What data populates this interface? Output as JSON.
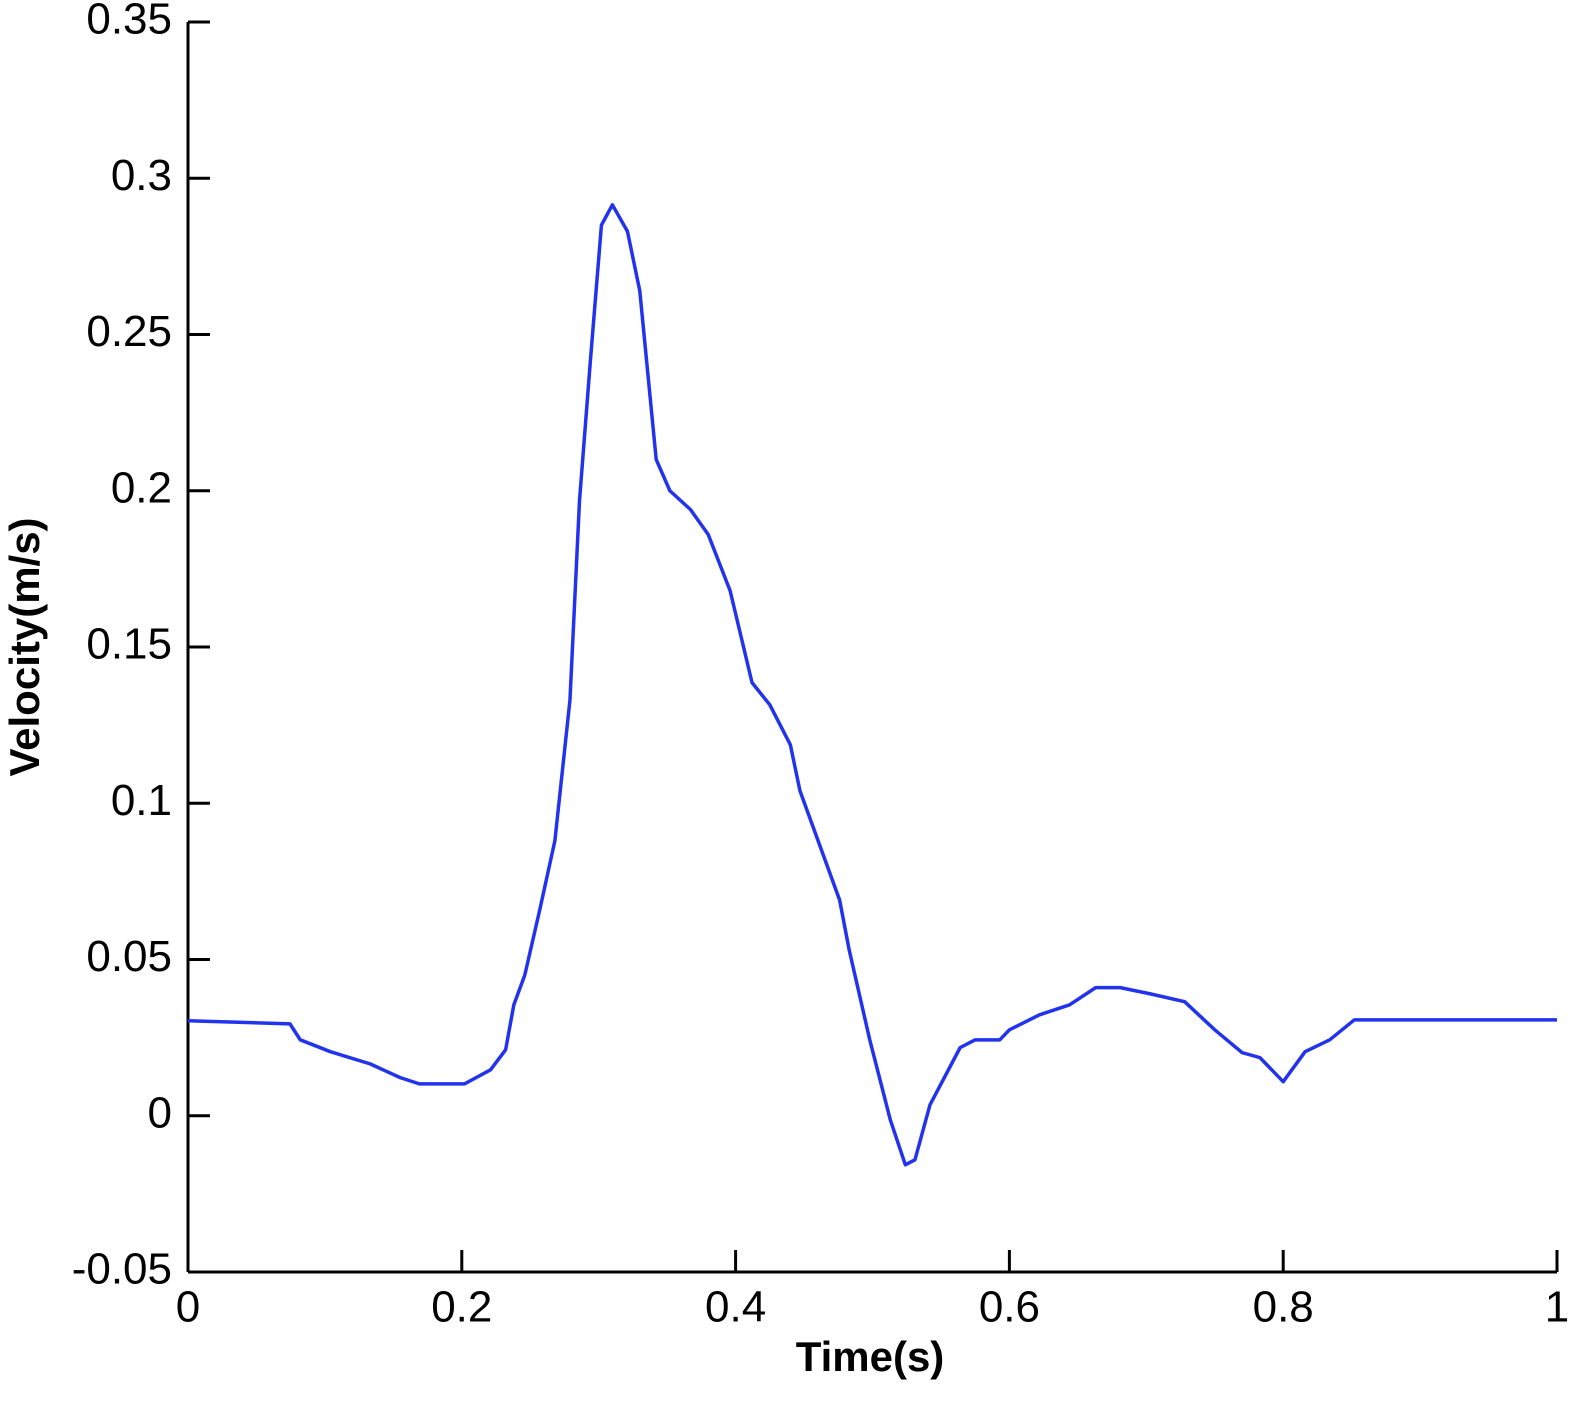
{
  "chart_data": {
    "type": "line",
    "x_label": "Time(s)",
    "y_label": "Velocity(m/s)",
    "xlim": [
      0,
      1
    ],
    "xticks": [
      0,
      0.2,
      0.4,
      0.6,
      0.8,
      1
    ],
    "ylim": [
      -0.05,
      0.35
    ],
    "yticks": [
      -0.05,
      0,
      0.05,
      0.1,
      0.15,
      0.2,
      0.25,
      0.3,
      0.35
    ],
    "x": [
      0,
      0.0745,
      0.082,
      0.104,
      0.133,
      0.155,
      0.169,
      0.202,
      0.221,
      0.232,
      0.238,
      0.246,
      0.257,
      0.268,
      0.279,
      0.286,
      0.294,
      0.302,
      0.31,
      0.321,
      0.33,
      0.342,
      0.352,
      0.367,
      0.38,
      0.396,
      0.412,
      0.425,
      0.44,
      0.447,
      0.476,
      0.483,
      0.498,
      0.513,
      0.524,
      0.531,
      0.542,
      0.564,
      0.575,
      0.593,
      0.6,
      0.622,
      0.644,
      0.663,
      0.681,
      0.703,
      0.728,
      0.75,
      0.77,
      0.783,
      0.8,
      0.816,
      0.834,
      0.852,
      1
    ],
    "series": [
      {
        "color": "#2233ee",
        "values": [
          0.0304,
          0.0294,
          0.0243,
          0.0205,
          0.0166,
          0.0122,
          0.0102,
          0.0102,
          0.0147,
          0.0211,
          0.0355,
          0.045,
          0.066,
          0.088,
          0.133,
          0.197,
          0.242,
          0.285,
          0.2915,
          0.283,
          0.264,
          0.21,
          0.2,
          0.194,
          0.186,
          0.168,
          0.1386,
          0.1315,
          0.1187,
          0.104,
          0.069,
          0.053,
          0.0243,
          -0.0013,
          -0.0157,
          -0.0141,
          0.0035,
          0.0218,
          0.0243,
          0.0243,
          0.0275,
          0.0323,
          0.0355,
          0.041,
          0.041,
          0.039,
          0.0365,
          0.0275,
          0.0202,
          0.0186,
          0.0109,
          0.0205,
          0.0243,
          0.0307,
          0.0307
        ]
      }
    ]
  }
}
